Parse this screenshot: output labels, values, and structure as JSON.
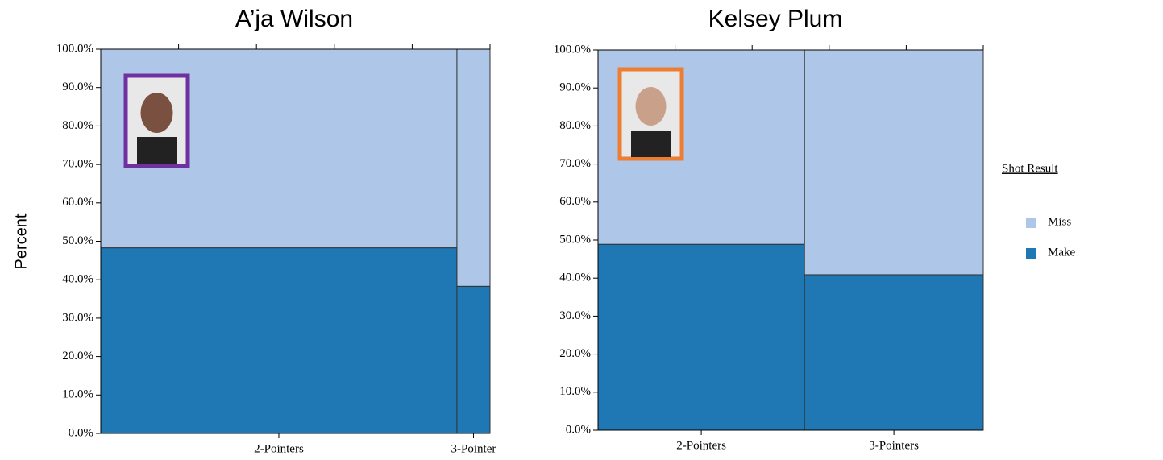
{
  "chart_data": [
    {
      "type": "mosaic",
      "title": "A’ja Wilson",
      "ylabel": "Percent",
      "categories": [
        "2-Pointers",
        "3-Pointer"
      ],
      "widths": [
        91.5,
        8.5
      ],
      "series": [
        {
          "name": "Make",
          "color": "#1f77b4",
          "values": [
            48.3,
            38.3
          ]
        },
        {
          "name": "Miss",
          "color": "#aec7e8",
          "values": [
            51.7,
            61.7
          ]
        }
      ],
      "ylim": [
        0,
        100
      ],
      "yticks": [
        {
          "value": 0,
          "label": "0.0%"
        },
        {
          "value": 10,
          "label": "10.0%"
        },
        {
          "value": 20,
          "label": "20.0%"
        },
        {
          "value": 30,
          "label": "30.0%"
        },
        {
          "value": 40,
          "label": "40.0%"
        },
        {
          "value": 50,
          "label": "50.0%"
        },
        {
          "value": 60,
          "label": "60.0%"
        },
        {
          "value": 70,
          "label": "70.0%"
        },
        {
          "value": 80,
          "label": "80.0%"
        },
        {
          "value": 90,
          "label": "90.0%"
        },
        {
          "value": 100,
          "label": "100.0%"
        }
      ],
      "xlim": [
        0,
        100
      ],
      "xticks": [
        20,
        40,
        60,
        80
      ]
    },
    {
      "type": "mosaic",
      "title": "Kelsey Plum",
      "legend_title": "Shot Result",
      "categories": [
        "2-Pointers",
        "3-Pointers"
      ],
      "widths": [
        53.6,
        46.4
      ],
      "series": [
        {
          "name": "Make",
          "color": "#1f77b4",
          "values": [
            48.9,
            40.9
          ]
        },
        {
          "name": "Miss",
          "color": "#aec7e8",
          "values": [
            51.1,
            59.1
          ]
        }
      ],
      "ylim": [
        0,
        100
      ],
      "yticks": [
        {
          "value": 0,
          "label": "0.0%"
        },
        {
          "value": 10,
          "label": "10.0%"
        },
        {
          "value": 20,
          "label": "20.0%"
        },
        {
          "value": 30,
          "label": "30.0%"
        },
        {
          "value": 40,
          "label": "40.0%"
        },
        {
          "value": 50,
          "label": "50.0%"
        },
        {
          "value": 60,
          "label": "60.0%"
        },
        {
          "value": 70,
          "label": "70.0%"
        },
        {
          "value": 80,
          "label": "80.0%"
        },
        {
          "value": 90,
          "label": "90.0%"
        },
        {
          "value": 100,
          "label": "100.0%"
        }
      ],
      "xlim": [
        0,
        100
      ],
      "xticks": [
        20,
        40,
        60,
        80
      ]
    }
  ]
}
